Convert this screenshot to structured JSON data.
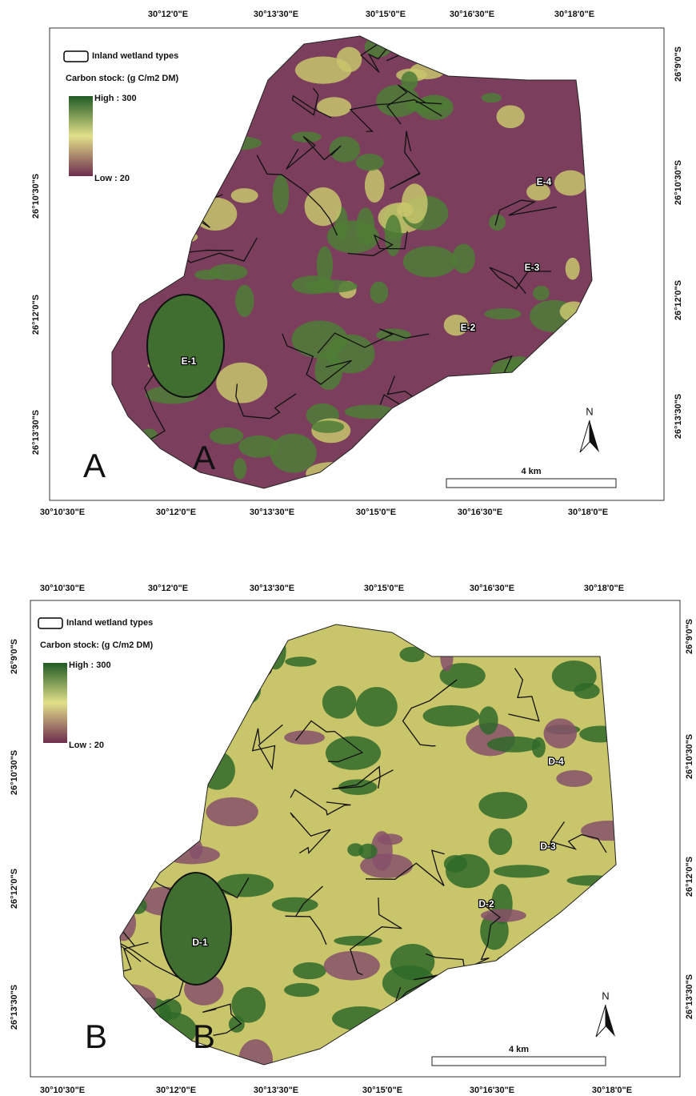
{
  "panels": [
    {
      "label": "A",
      "label_overlay": "A",
      "top_labels": [
        "30°12'0\"E",
        "30°13'30\"E",
        "30°15'0\"E",
        "30°16'30\"E",
        "30°18'0\"E"
      ],
      "bottom_labels": [
        "30°10'30\"E",
        "30°12'0\"E",
        "30°13'30\"E",
        "30°15'0\"E",
        "30°16'30\"E",
        "30°18'0\"E"
      ],
      "left_labels": [
        "26°10'30\"S",
        "26°12'0\"S",
        "26°13'30\"S"
      ],
      "right_labels": [
        "26°9'0\"S",
        "26°10'30\"S",
        "26°12'0\"S",
        "26°13'30\"S"
      ],
      "legend": {
        "wetland": "Inland wetland types",
        "carbon": "Carbon stock: (g C/m2 DM)",
        "high": "High : 300",
        "low": "Low : 20"
      },
      "zones": [
        "E-1",
        "E-2",
        "E-3",
        "E-4"
      ],
      "north": "N",
      "scale": "4 km"
    },
    {
      "label": "B",
      "label_overlay": "B",
      "top_labels": [
        "30°10'30\"E",
        "30°12'0\"E",
        "30°13'30\"E",
        "30°15'0\"E",
        "30°16'30\"E",
        "30°18'0\"E"
      ],
      "bottom_labels": [
        "30°10'30\"E",
        "30°12'0\"E",
        "30°13'30\"E",
        "30°15'0\"E",
        "30°16'30\"E",
        "30°18'0\"E"
      ],
      "left_labels": [
        "26°9'0\"S",
        "26°10'30\"S",
        "26°12'0\"S",
        "26°13'30\"S"
      ],
      "right_labels": [
        "26°9'0\"S",
        "26°10'30\"S",
        "26°12'0\"S",
        "26°13'30\"S"
      ],
      "legend": {
        "wetland": "Inland wetland types",
        "carbon": "Carbon stock: (g C/m2 DM)",
        "high": "High : 300",
        "low": "Low : 20"
      },
      "zones": [
        "D-1",
        "D-2",
        "D-3",
        "D-4"
      ],
      "north": "N",
      "scale": "4 km"
    }
  ]
}
